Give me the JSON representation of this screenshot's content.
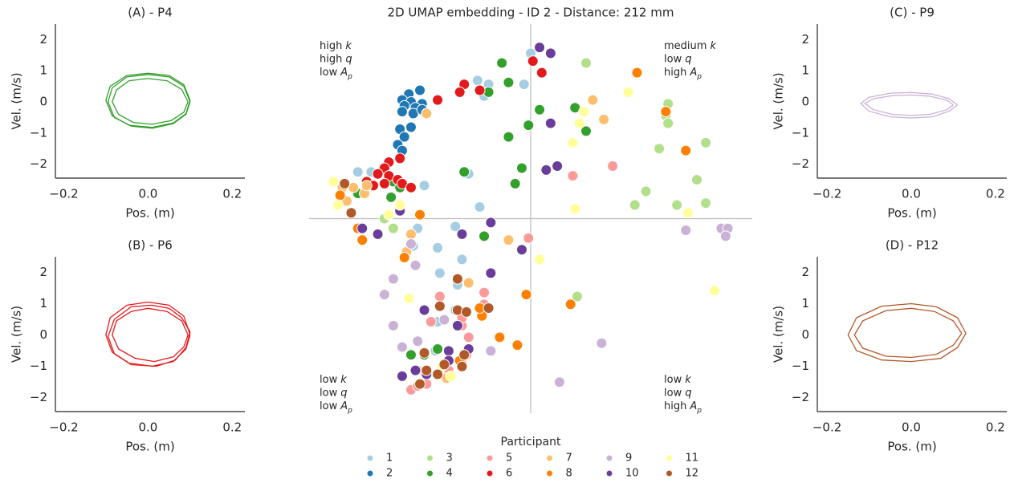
{
  "chart_data": [
    {
      "type": "line",
      "title": "(A) - P4",
      "xlabel": "Pos. (m)",
      "ylabel": "Vel. (m/s)",
      "color": "#33a02c",
      "xlim": [
        -0.22,
        0.23
      ],
      "ylim": [
        -2.45,
        2.5
      ],
      "xticks": [
        {
          "value": -0.2,
          "label": "−0.2"
        },
        {
          "value": 0,
          "label": "0.0"
        },
        0.2
      ],
      "yticks": [
        {
          "value": -2,
          "label": "−2"
        },
        {
          "value": -1,
          "label": "−1"
        },
        0,
        1,
        2
      ],
      "series": [
        {
          "x": [
            0.1,
            0.085,
            0.05,
            0.0,
            -0.05,
            -0.085,
            -0.095,
            -0.08,
            -0.04,
            0.01,
            0.06,
            0.09,
            0.1
          ],
          "y": [
            0.0,
            0.5,
            0.8,
            0.88,
            0.8,
            0.45,
            0.0,
            -0.5,
            -0.78,
            -0.85,
            -0.7,
            -0.4,
            0.0
          ]
        },
        {
          "x": [
            0.095,
            0.08,
            0.045,
            0.0,
            -0.045,
            -0.075,
            -0.085,
            -0.07,
            -0.035,
            0.01,
            0.055,
            0.085,
            0.095
          ],
          "y": [
            0.0,
            0.4,
            0.68,
            0.75,
            0.68,
            0.38,
            0.0,
            -0.4,
            -0.66,
            -0.72,
            -0.6,
            -0.33,
            0.0
          ]
        },
        {
          "x": [
            0.1,
            0.085,
            0.05,
            0.0,
            -0.05,
            -0.09,
            -0.1,
            -0.085,
            -0.045,
            0.01,
            0.06,
            0.09,
            0.1
          ],
          "y": [
            0.05,
            0.55,
            0.85,
            0.92,
            0.85,
            0.5,
            0.05,
            -0.45,
            -0.75,
            -0.82,
            -0.68,
            -0.38,
            0.05
          ]
        }
      ]
    },
    {
      "type": "line",
      "title": "(B) - P6",
      "xlabel": "Pos. (m)",
      "ylabel": "Vel. (m/s)",
      "color": "#e31a1c",
      "xlim": [
        -0.22,
        0.23
      ],
      "ylim": [
        -2.45,
        2.5
      ],
      "xticks": [
        {
          "value": -0.2,
          "label": "−0.2"
        },
        {
          "value": 0,
          "label": "0.0"
        },
        0.2
      ],
      "yticks": [
        {
          "value": -2,
          "label": "−2"
        },
        {
          "value": -1,
          "label": "−1"
        },
        0,
        1,
        2
      ],
      "series": [
        {
          "x": [
            0.1,
            0.085,
            0.05,
            0.0,
            -0.05,
            -0.09,
            -0.1,
            -0.085,
            -0.045,
            0.01,
            0.06,
            0.09,
            0.1
          ],
          "y": [
            0.0,
            0.6,
            0.95,
            1.05,
            0.95,
            0.55,
            0.0,
            -0.55,
            -0.9,
            -1.0,
            -0.85,
            -0.45,
            0.0
          ]
        },
        {
          "x": [
            0.095,
            0.08,
            0.045,
            0.0,
            -0.04,
            -0.075,
            -0.085,
            -0.07,
            -0.03,
            0.015,
            0.06,
            0.085,
            0.095
          ],
          "y": [
            0.0,
            0.45,
            0.75,
            0.85,
            0.75,
            0.45,
            0.0,
            -0.45,
            -0.75,
            -0.85,
            -0.7,
            -0.38,
            0.0
          ]
        },
        {
          "x": [
            0.1,
            0.08,
            0.05,
            0.01,
            -0.04,
            -0.08,
            -0.095,
            -0.08,
            -0.04,
            0.02,
            0.065,
            0.09,
            0.1
          ],
          "y": [
            0.1,
            0.55,
            0.85,
            0.95,
            0.9,
            0.5,
            -0.05,
            -0.6,
            -0.95,
            -1.0,
            -0.8,
            -0.4,
            0.1
          ]
        }
      ]
    },
    {
      "type": "scatter",
      "title": "2D UMAP embedding - ID 2 - Distance: 212 mm",
      "legend_title": "Participant",
      "xlim": [
        -10,
        10
      ],
      "ylim": [
        -10,
        10
      ],
      "axhline": 0,
      "axvline": 0,
      "annotations": [
        {
          "corner": "top-left",
          "lines": [
            {
              "text": "high",
              "symbol": "k"
            },
            {
              "text": "high",
              "symbol": "q"
            },
            {
              "text": "low",
              "symbol": "A",
              "subscript": "p"
            }
          ]
        },
        {
          "corner": "top-right",
          "lines": [
            {
              "text": "medium",
              "symbol": "k"
            },
            {
              "text": "low",
              "symbol": "q"
            },
            {
              "text": "high",
              "symbol": "A",
              "subscript": "p"
            }
          ]
        },
        {
          "corner": "bottom-left",
          "lines": [
            {
              "text": "low",
              "symbol": "k"
            },
            {
              "text": "low",
              "symbol": "q"
            },
            {
              "text": "low",
              "symbol": "A",
              "subscript": "p"
            }
          ]
        },
        {
          "corner": "bottom-right",
          "lines": [
            {
              "text": "low",
              "symbol": "k"
            },
            {
              "text": "low",
              "symbol": "q"
            },
            {
              "text": "high",
              "symbol": "A",
              "subscript": "p"
            }
          ]
        }
      ],
      "series": [
        {
          "name": "1",
          "color": "#a6cee3",
          "x": [
            0.0,
            -1.9,
            -2.4,
            -0.3,
            -2.1,
            -2.8,
            -4.8,
            -2.3,
            -7.8,
            -7.2,
            -5.1,
            -3.4,
            -4.2,
            -4.1,
            -3.1,
            -3.3,
            -3.4,
            -4.2,
            -5.3,
            -4.3
          ],
          "y": [
            8.5,
            6.9,
            7.1,
            6.9,
            6.3,
            2.3,
            1.7,
            0.6,
            2.4,
            2.4,
            -0.5,
            -0.4,
            -1.5,
            -2.8,
            -2.1,
            -3.4,
            -4.7,
            -5.3,
            -1.4,
            -6.8
          ]
        },
        {
          "name": "2",
          "color": "#1f78b4",
          "x": [
            -5.0,
            -5.5,
            -5.8,
            -5.4,
            -4.9,
            -5.2,
            -5.7,
            -5.8,
            -5.3,
            -4.9,
            -5.9,
            -5.4,
            -5.7,
            -6.0,
            -5.8
          ],
          "y": [
            6.6,
            6.4,
            6.1,
            6.0,
            5.9,
            5.7,
            5.8,
            5.5,
            5.4,
            5.6,
            4.6,
            4.7,
            4.2,
            3.8,
            3.5
          ]
        },
        {
          "name": "3",
          "color": "#b2df8a",
          "x": [
            2.5,
            6.2,
            6.1,
            6.2,
            5.8,
            7.9,
            5.2,
            7.5,
            4.7,
            6.6,
            7.9,
            2.1,
            -6.6,
            -6.2
          ],
          "y": [
            8.0,
            5.9,
            5.3,
            4.9,
            3.6,
            3.9,
            1.4,
            2.0,
            0.7,
            0.7,
            0.8,
            -4.0,
            0.0,
            -0.5
          ]
        },
        {
          "name": "4",
          "color": "#33a02c",
          "x": [
            -1.3,
            -1.0,
            -1.9,
            0.4,
            2.0,
            -0.1,
            2.5,
            -1.0,
            -0.4,
            -0.7,
            -3.0,
            -6.2,
            -6.3,
            -5.9,
            -7.8,
            -6.6,
            -2.1,
            -4.2,
            -5.4,
            -4.8
          ],
          "y": [
            8.0,
            7.0,
            6.5,
            5.6,
            5.7,
            4.8,
            4.5,
            4.2,
            2.6,
            1.8,
            2.4,
            1.9,
            1.1,
            1.6,
            1.3,
            2.5,
            -0.9,
            -6.7,
            -7.0,
            -7.0
          ]
        },
        {
          "name": "5",
          "color": "#fb9a99",
          "x": [
            1.9,
            3.7,
            -0.1,
            -4.1,
            -4.5,
            -3.1,
            -2.9,
            -2.1,
            -2.1,
            -3.1,
            -5.4,
            -5.1,
            -4.7,
            -3.7,
            -2.8
          ],
          "y": [
            2.2,
            2.7,
            -1.0,
            -4.0,
            -5.3,
            -5.5,
            -7.0,
            -3.8,
            -4.4,
            -5.1,
            -8.8,
            -8.6,
            -8.5,
            -7.8,
            -6.1
          ]
        },
        {
          "name": "6",
          "color": "#e31a1c",
          "x": [
            -3.0,
            -2.3,
            -3.2,
            0.1,
            0.5,
            -4.2,
            -5.9,
            -6.4,
            -6.6,
            -6.9,
            -6.4,
            -6.0,
            -5.8,
            -5.4,
            -7.4,
            -6.6,
            -7.1
          ],
          "y": [
            6.9,
            6.6,
            6.5,
            8.1,
            7.5,
            6.1,
            3.1,
            2.9,
            2.6,
            2.3,
            2.2,
            2.0,
            1.8,
            1.6,
            1.9,
            1.8,
            1.7
          ]
        },
        {
          "name": "7",
          "color": "#fdbf6f",
          "x": [
            -4.7,
            1.2,
            2.8,
            3.3,
            -8.5,
            -8.0,
            -7.5,
            -7.4,
            -8.3,
            -1.0,
            -2.8,
            -5.6,
            -5.4,
            -5.1,
            -3.1,
            -3.8
          ],
          "y": [
            5.4,
            2.7,
            6.1,
            5.1,
            1.6,
            1.6,
            1.3,
            1.7,
            0.9,
            -1.1,
            -3.3,
            -1.7,
            -0.8,
            -7.8,
            -7.4,
            -8.2
          ]
        },
        {
          "name": "8",
          "color": "#ff7f00",
          "x": [
            4.8,
            6.1,
            7.0,
            -8.6,
            -7.8,
            -7.6,
            -5.0,
            -5.7,
            -0.2,
            1.8,
            -1.4,
            -0.6,
            -2.2,
            -2.3,
            -3.2
          ],
          "y": [
            7.5,
            5.5,
            3.5,
            1.2,
            -0.5,
            -1.1,
            0.2,
            -2.0,
            -3.9,
            -4.4,
            -6.1,
            -6.5,
            -5.0,
            -4.6,
            -7.3
          ]
        },
        {
          "name": "9",
          "color": "#cab2d6",
          "x": [
            8.6,
            8.9,
            8.8,
            7.0,
            -6.2,
            -6.6,
            -6.2,
            -5.8,
            -5.1,
            -3.9,
            -1.8,
            3.2,
            1.3,
            -5.4,
            -5.2
          ],
          "y": [
            -0.5,
            -0.5,
            -0.9,
            -0.6,
            -3.1,
            -3.9,
            -5.5,
            -6.6,
            -6.3,
            -5.2,
            -6.8,
            -6.4,
            -8.4,
            -1.3,
            -2.4
          ]
        },
        {
          "name": "10",
          "color": "#6a3d9a",
          "x": [
            0.4,
            0.9,
            0.9,
            0.7,
            1.2,
            -5.9,
            -7.6,
            -6.9,
            -3.1,
            -1.8,
            -0.4,
            -1.8,
            -4.8,
            -3.3,
            -3.7,
            -2.8,
            -5.2,
            -4.7,
            -5.8,
            -3.7
          ],
          "y": [
            8.8,
            8.5,
            4.9,
            2.5,
            2.7,
            0.4,
            -0.5,
            -0.8,
            -0.8,
            -0.2,
            -1.6,
            -2.8,
            -4.7,
            -5.5,
            -6.8,
            -6.7,
            -7.8,
            -8.0,
            -8.1,
            -7.3
          ]
        },
        {
          "name": "11",
          "color": "#ffff99",
          "x": [
            4.4,
            2.4,
            2.2,
            1.9,
            2.0,
            7.1,
            -8.9,
            -8.7,
            -6.4,
            -5.9,
            0.4,
            8.3,
            -5.5,
            -3.6,
            -4.0
          ],
          "y": [
            6.5,
            5.5,
            4.9,
            3.9,
            0.5,
            0.3,
            1.9,
            0.7,
            0.2,
            0.7,
            -2.1,
            -3.7,
            -4.1,
            -8.1,
            -7.6
          ]
        },
        {
          "name": "12",
          "color": "#b15928",
          "x": [
            -8.4,
            -8.1,
            -3.3,
            -4.1,
            -3.3,
            -2.9,
            -1.9,
            -3.0,
            -4.8,
            -3.9,
            -4.2,
            -5.0,
            -3.1,
            -4.7
          ],
          "y": [
            1.8,
            0.3,
            -3.1,
            -4.5,
            -4.7,
            -4.8,
            -4.6,
            -7.0,
            -6.9,
            -7.5,
            -8.0,
            -8.5,
            -7.6,
            -7.8
          ]
        }
      ]
    },
    {
      "type": "line",
      "title": "(C) - P9",
      "xlabel": "Pos. (m)",
      "ylabel": "Vel. (m/s)",
      "color": "#cab2d6",
      "xlim": [
        -0.223,
        0.227
      ],
      "ylim": [
        -2.45,
        2.5
      ],
      "xticks": [
        {
          "value": -0.2,
          "label": "−0.2"
        },
        {
          "value": 0,
          "label": "0.0"
        },
        0.2
      ],
      "yticks": [
        {
          "value": -2,
          "label": "−2"
        },
        {
          "value": -1,
          "label": "−1"
        },
        0,
        1,
        2
      ],
      "series": [
        {
          "x": [
            0.11,
            0.09,
            0.05,
            0.0,
            -0.05,
            -0.1,
            -0.12,
            -0.1,
            -0.05,
            0.0,
            0.05,
            0.09,
            0.11
          ],
          "y": [
            -0.1,
            0.1,
            0.25,
            0.3,
            0.28,
            0.15,
            -0.05,
            -0.3,
            -0.48,
            -0.52,
            -0.48,
            -0.3,
            -0.1
          ]
        },
        {
          "x": [
            0.1,
            0.085,
            0.045,
            0.0,
            -0.045,
            -0.09,
            -0.11,
            -0.09,
            -0.045,
            0.0,
            0.045,
            0.085,
            0.1
          ],
          "y": [
            -0.1,
            0.05,
            0.18,
            0.22,
            0.2,
            0.1,
            -0.05,
            -0.25,
            -0.4,
            -0.44,
            -0.4,
            -0.25,
            -0.1
          ]
        }
      ]
    },
    {
      "type": "line",
      "title": "(D) - P12",
      "xlabel": "Pos. (m)",
      "ylabel": "Vel. (m/s)",
      "color": "#b15928",
      "xlim": [
        -0.223,
        0.227
      ],
      "ylim": [
        -2.45,
        2.5
      ],
      "xticks": [
        {
          "value": -0.2,
          "label": "−0.2"
        },
        {
          "value": 0,
          "label": "0.0"
        },
        0.2
      ],
      "yticks": [
        {
          "value": -2,
          "label": "−2"
        },
        {
          "value": -1,
          "label": "−1"
        },
        0,
        1,
        2
      ],
      "series": [
        {
          "x": [
            0.13,
            0.11,
            0.06,
            0.0,
            -0.07,
            -0.13,
            -0.15,
            -0.13,
            -0.07,
            0.0,
            0.07,
            0.11,
            0.13
          ],
          "y": [
            0.05,
            0.55,
            0.9,
            1.0,
            0.92,
            0.55,
            0.0,
            -0.5,
            -0.8,
            -0.85,
            -0.75,
            -0.4,
            0.05
          ]
        },
        {
          "x": [
            0.12,
            0.1,
            0.055,
            0.0,
            -0.06,
            -0.115,
            -0.135,
            -0.115,
            -0.06,
            0.0,
            0.06,
            0.1,
            0.12
          ],
          "y": [
            0.05,
            0.45,
            0.75,
            0.85,
            0.78,
            0.45,
            0.0,
            -0.42,
            -0.68,
            -0.72,
            -0.62,
            -0.33,
            0.05
          ]
        }
      ]
    }
  ]
}
